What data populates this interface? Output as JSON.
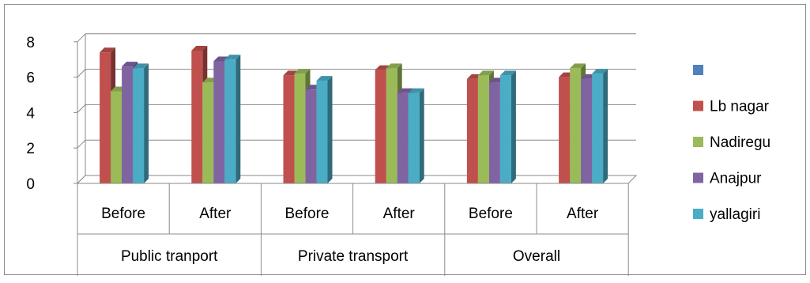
{
  "chart_data": {
    "type": "bar",
    "subtype": "3d-clustered-column",
    "title": "",
    "xlabel": "",
    "ylabel": "",
    "ylim": [
      0,
      8
    ],
    "yticks": [
      0,
      2,
      4,
      6,
      8
    ],
    "grid": true,
    "legend_position": "right",
    "categories": [
      "Before",
      "After",
      "Before",
      "After",
      "Before",
      "After"
    ],
    "groups": [
      {
        "label": "Public tranport",
        "categories": [
          "Before",
          "After"
        ]
      },
      {
        "label": "Private transport",
        "categories": [
          "Before",
          "After"
        ]
      },
      {
        "label": "Overall",
        "categories": [
          "Before",
          "After"
        ]
      }
    ],
    "series": [
      {
        "name": "",
        "color": "#4F81BD",
        "values": [
          0,
          0,
          0,
          0,
          0,
          0
        ]
      },
      {
        "name": "Lb nagar",
        "color": "#C0504D",
        "values": [
          7.4,
          7.5,
          6.1,
          6.4,
          5.9,
          6.0
        ]
      },
      {
        "name": "Nadiregu",
        "color": "#9BBB59",
        "values": [
          5.2,
          5.7,
          6.2,
          6.5,
          6.1,
          6.5
        ]
      },
      {
        "name": "Anajpur",
        "color": "#8064A2",
        "values": [
          6.6,
          6.9,
          5.3,
          5.1,
          5.7,
          5.9
        ]
      },
      {
        "name": "yallagiri",
        "color": "#4BACC6",
        "values": [
          6.5,
          7.0,
          5.8,
          5.1,
          6.1,
          6.2
        ]
      }
    ]
  }
}
